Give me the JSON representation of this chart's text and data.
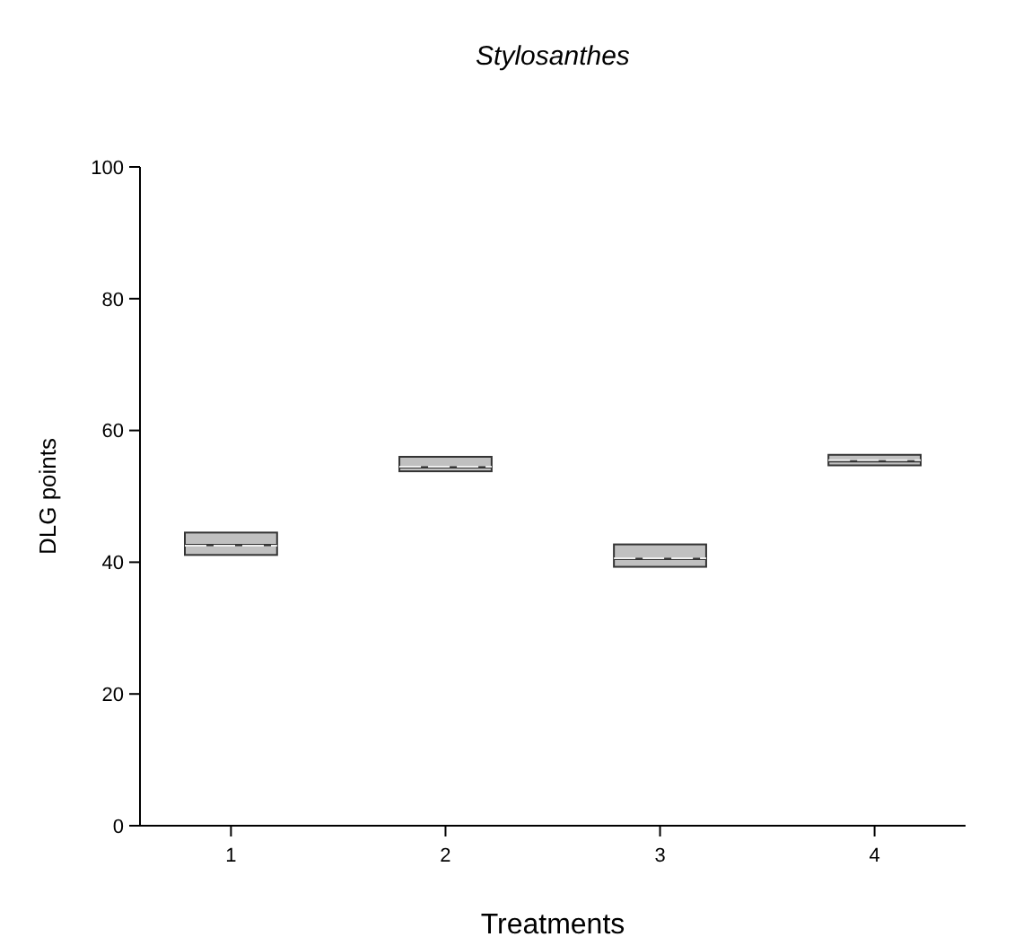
{
  "chart_data": {
    "type": "box",
    "title": "Stylosanthes",
    "xlabel": "Treatments",
    "ylabel": "DLG points",
    "categories": [
      "1",
      "2",
      "3",
      "4"
    ],
    "ylim": [
      0,
      100
    ],
    "yticks": [
      0,
      20,
      40,
      60,
      80,
      100
    ],
    "color": "#c0c0c0",
    "boxes": [
      {
        "low": 41.1,
        "q1": 41.1,
        "median": 42.6,
        "q3": 44.5,
        "high": 44.5,
        "mean": 42.5
      },
      {
        "low": 53.8,
        "q1": 53.8,
        "median": 54.4,
        "q3": 56,
        "high": 56,
        "mean": 54.5
      },
      {
        "low": 39.3,
        "q1": 39.3,
        "median": 40.5,
        "q3": 42.7,
        "high": 42.7,
        "mean": 40.6
      },
      {
        "low": 54.7,
        "q1": 54.7,
        "median": 55.3,
        "q3": 56.3,
        "high": 56.3,
        "mean": 55.5
      }
    ]
  }
}
